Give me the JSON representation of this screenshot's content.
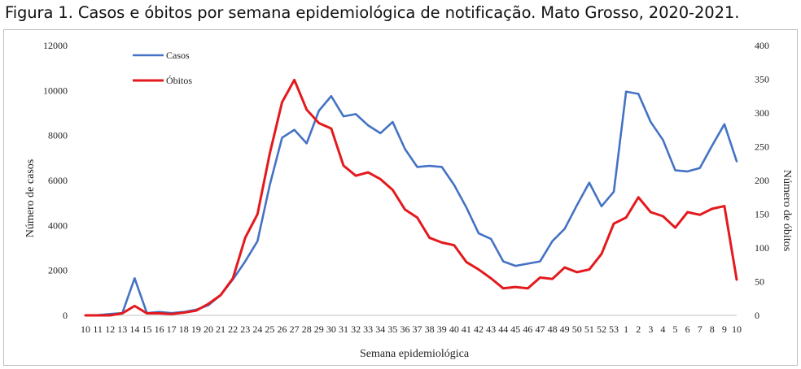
{
  "caption": "Figura 1. Casos e óbitos por semana epidemiológica de notificação. Mato Grosso, 2020-2021.",
  "chart_data": {
    "type": "line",
    "title": "Figura 1. Casos e óbitos por semana epidemiológica de notificação. Mato Grosso, 2020-2021.",
    "xlabel": "Semana epidemiológica",
    "ylabel_left": "Número de casos",
    "ylabel_right": "Número de óbitos",
    "ylim_left": [
      0,
      12000
    ],
    "ylim_right": [
      0,
      400
    ],
    "yticks_left": [
      "0",
      "2000",
      "4000",
      "6000",
      "8000",
      "10000",
      "12000"
    ],
    "yticks_right": [
      "0",
      "50",
      "100",
      "150",
      "200",
      "250",
      "300",
      "350",
      "400"
    ],
    "grid": false,
    "legend_position": "top-left",
    "categories": [
      "10",
      "11",
      "12",
      "13",
      "14",
      "15",
      "16",
      "17",
      "18",
      "19",
      "20",
      "21",
      "22",
      "23",
      "24",
      "25",
      "26",
      "27",
      "28",
      "29",
      "30",
      "31",
      "32",
      "33",
      "34",
      "35",
      "36",
      "37",
      "38",
      "39",
      "40",
      "41",
      "42",
      "43",
      "44",
      "45",
      "46",
      "47",
      "48",
      "49",
      "50",
      "51",
      "52",
      "53",
      "1",
      "2",
      "3",
      "4",
      "5",
      "6",
      "7",
      "8",
      "9",
      "10"
    ],
    "series": [
      {
        "name": "Casos",
        "axis": "left",
        "color": "#4472c4",
        "values": [
          0,
          10,
          60,
          100,
          1650,
          100,
          150,
          100,
          150,
          250,
          450,
          900,
          1600,
          2400,
          3300,
          5800,
          7900,
          8250,
          7650,
          9100,
          9750,
          8850,
          8950,
          8450,
          8100,
          8600,
          7400,
          6600,
          6650,
          6600,
          5800,
          4800,
          3650,
          3400,
          2400,
          2200,
          2300,
          2400,
          3300,
          3850,
          4900,
          5900,
          4850,
          5500,
          9950,
          9850,
          8600,
          7800,
          6450,
          6400,
          6550,
          7550,
          8500,
          6850
        ]
      },
      {
        "name": "Óbitos",
        "axis": "right",
        "color": "#e4191d",
        "values": [
          0,
          0,
          0,
          3,
          14,
          3,
          3,
          2,
          4,
          7,
          17,
          30,
          55,
          115,
          150,
          240,
          316,
          349,
          305,
          285,
          277,
          222,
          207,
          212,
          202,
          186,
          157,
          145,
          115,
          108,
          104,
          79,
          68,
          55,
          40,
          42,
          40,
          56,
          54,
          71,
          64,
          68,
          91,
          136,
          145,
          175,
          153,
          147,
          130,
          153,
          149,
          158,
          162,
          53
        ]
      }
    ]
  }
}
